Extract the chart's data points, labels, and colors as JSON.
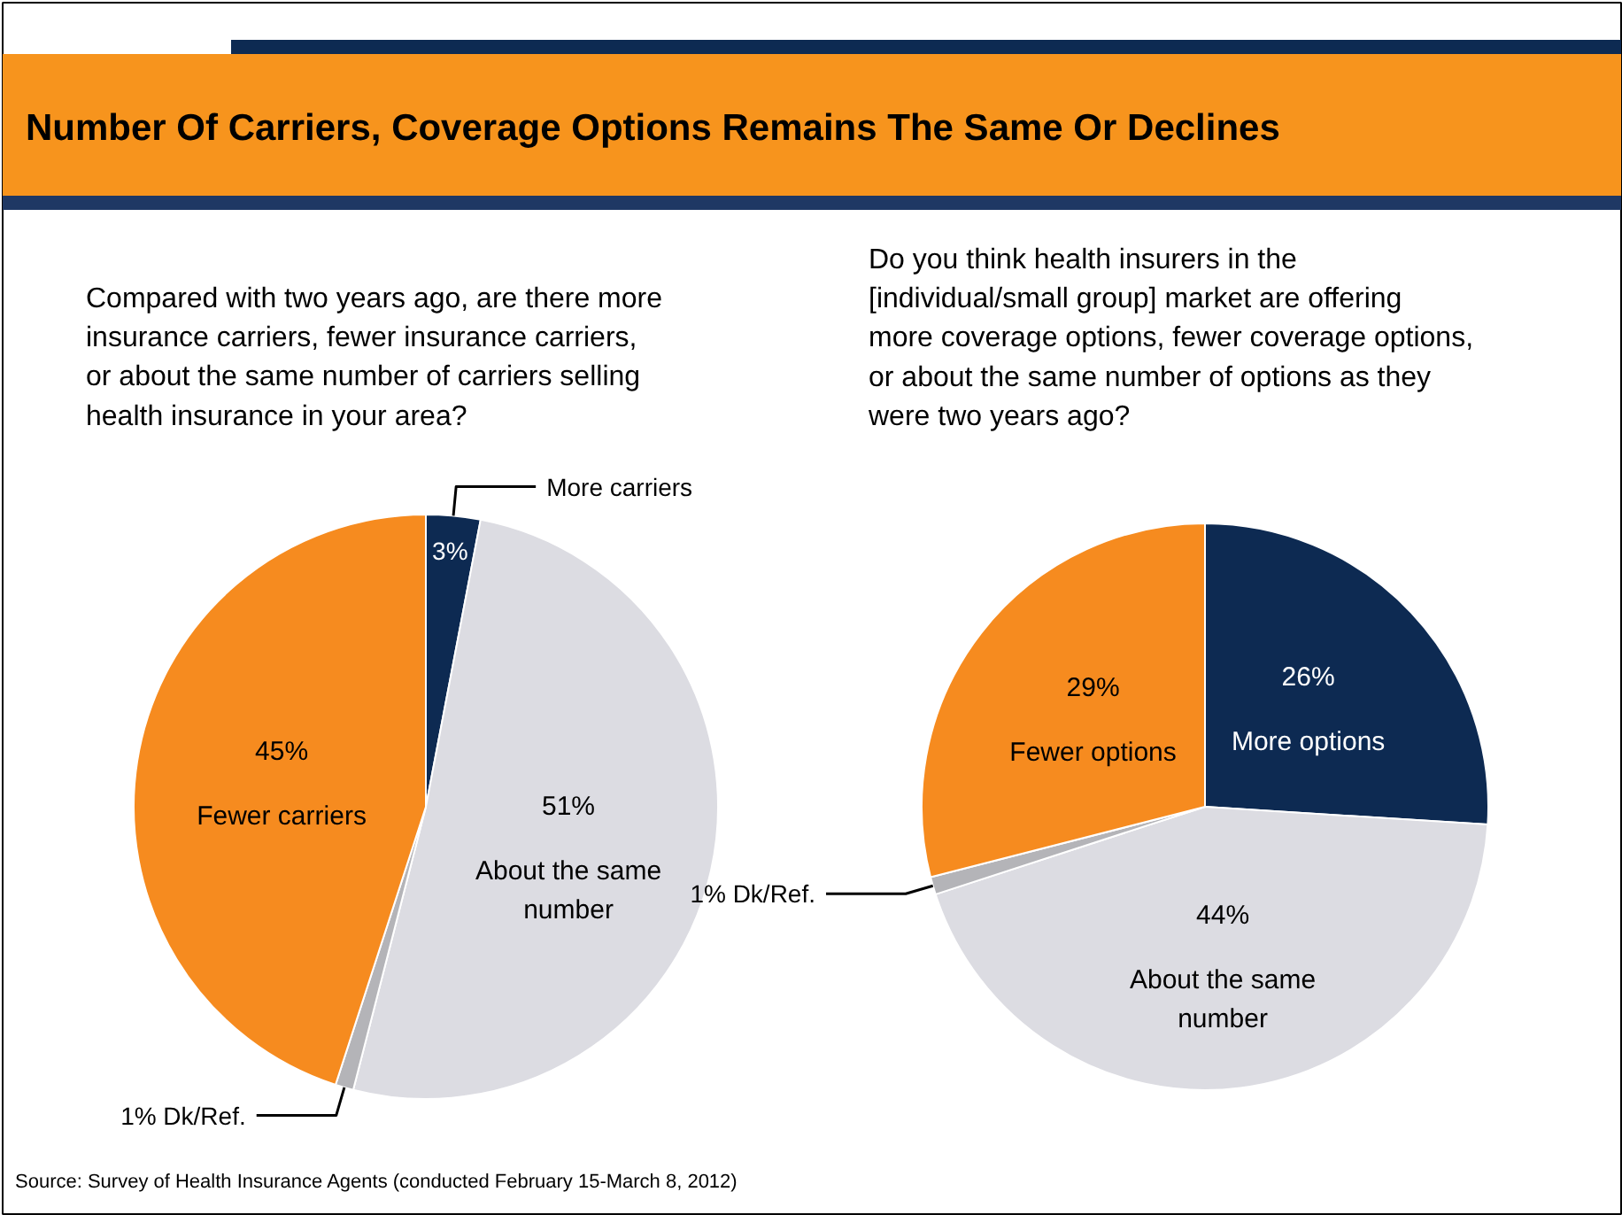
{
  "chart_data": [
    {
      "type": "pie",
      "title": "Number Of Carriers, Coverage Options Remains The Same Or Declines",
      "subtitle": "Compared with two years ago, are there more insurance carriers, fewer insurance carriers, or about the same number of carriers selling health insurance in your area?",
      "categories": [
        "More carriers",
        "About the same number",
        "Dk/Ref.",
        "Fewer carriers"
      ],
      "values": [
        3,
        51,
        1,
        45
      ],
      "value_labels": [
        "3%",
        "51%",
        "1%",
        "45%"
      ],
      "colors": [
        "#0d2a52",
        "#dcdce2",
        "#b4b4b8",
        "#f68b1f"
      ],
      "annotations": [
        "Source: Survey of Health Insurance Agents (conducted February 15-March 8, 2012)"
      ]
    },
    {
      "type": "pie",
      "subtitle": "Do you think health insurers in the [individual/small group] market are offering more coverage options, fewer coverage options, or about the same number of options as they were two years ago?",
      "categories": [
        "More options",
        "About the same number",
        "Dk/Ref.",
        "Fewer options"
      ],
      "values": [
        26,
        44,
        1,
        29
      ],
      "value_labels": [
        "26%",
        "44%",
        "1%",
        "29%"
      ],
      "colors": [
        "#0d2a52",
        "#dcdce2",
        "#b4b4b8",
        "#f68b1f"
      ]
    }
  ]
}
